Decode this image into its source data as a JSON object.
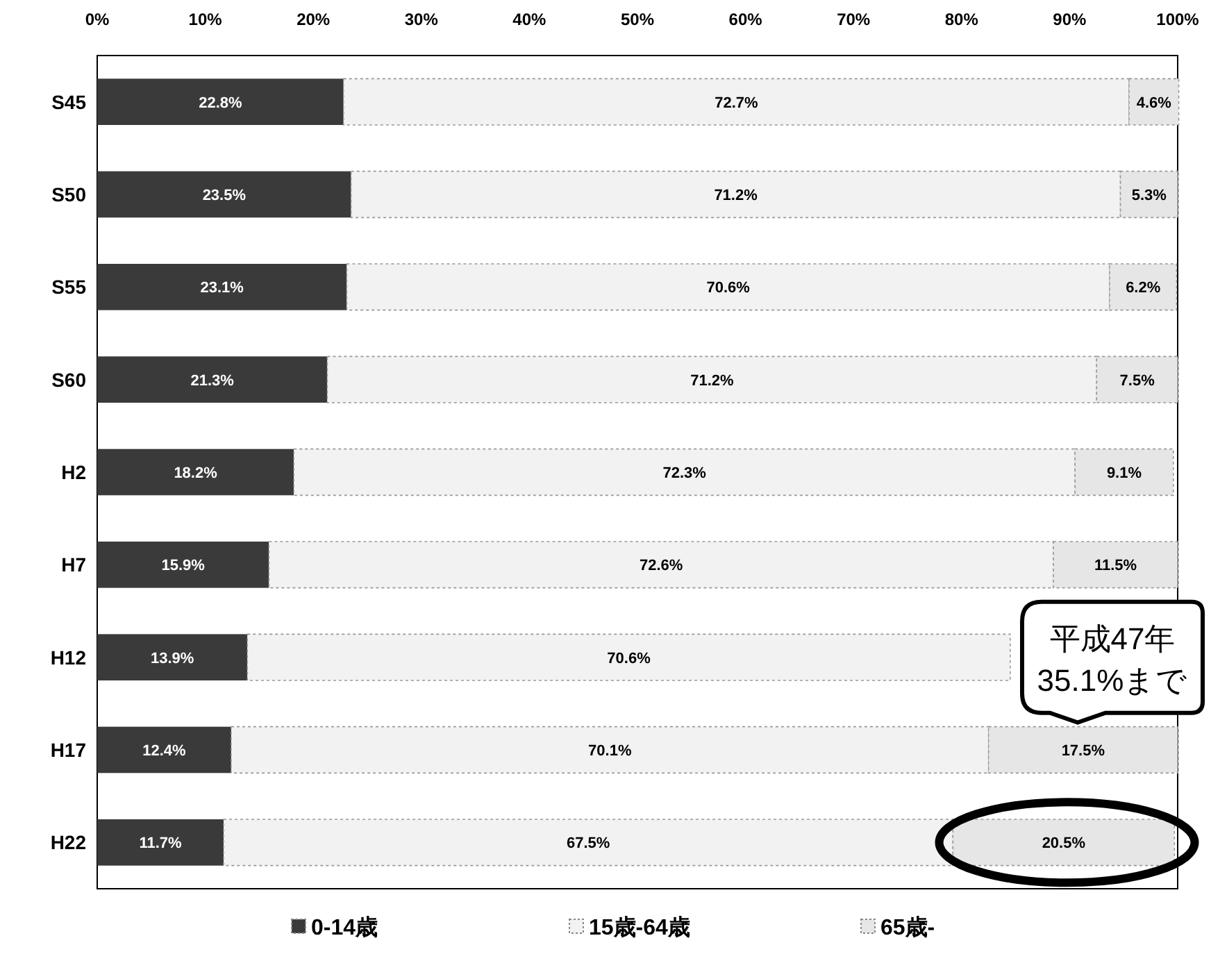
{
  "chart_data": {
    "type": "bar",
    "orientation": "horizontal",
    "stacked": true,
    "categories": [
      "S45",
      "S50",
      "S55",
      "S60",
      "H2",
      "H7",
      "H12",
      "H17",
      "H22"
    ],
    "series": [
      {
        "name": "0-14歳",
        "color": "#3a3a3a",
        "values": [
          22.8,
          23.5,
          23.1,
          21.3,
          18.2,
          15.9,
          13.9,
          12.4,
          11.7
        ],
        "value_labels": [
          "22.8%",
          "23.5%",
          "23.1%",
          "21.3%",
          "18.2%",
          "15.9%",
          "13.9%",
          "12.4%",
          "11.7%"
        ]
      },
      {
        "name": "15歳-64歳",
        "color": "#f2f2f2",
        "values": [
          72.7,
          71.2,
          70.6,
          71.2,
          72.3,
          72.6,
          70.6,
          70.1,
          67.5
        ],
        "value_labels": [
          "72.7%",
          "71.2%",
          "70.6%",
          "71.2%",
          "72.3%",
          "72.6%",
          "70.6%",
          "70.1%",
          "67.5%"
        ]
      },
      {
        "name": "65歳-",
        "color": "#e6e6e6",
        "values": [
          4.6,
          5.3,
          6.2,
          7.5,
          9.1,
          11.5,
          null,
          17.5,
          20.5
        ],
        "value_labels": [
          "4.6%",
          "5.3%",
          "6.2%",
          "7.5%",
          "9.1%",
          "11.5%",
          null,
          "17.5%",
          "20.5%"
        ]
      }
    ],
    "xlim": [
      0,
      100
    ],
    "xticks": [
      {
        "value": 0,
        "label": "0%"
      },
      {
        "value": 10,
        "label": "10%"
      },
      {
        "value": 20,
        "label": "20%"
      },
      {
        "value": 30,
        "label": "30%"
      },
      {
        "value": 40,
        "label": "40%"
      },
      {
        "value": 50,
        "label": "50%"
      },
      {
        "value": 60,
        "label": "60%"
      },
      {
        "value": 70,
        "label": "70%"
      },
      {
        "value": 80,
        "label": "80%"
      },
      {
        "value": 90,
        "label": "90%"
      },
      {
        "value": 100,
        "label": "100%"
      }
    ],
    "legend": "bottom",
    "annotations": [
      "平成47年\n35.1%まで"
    ]
  }
}
